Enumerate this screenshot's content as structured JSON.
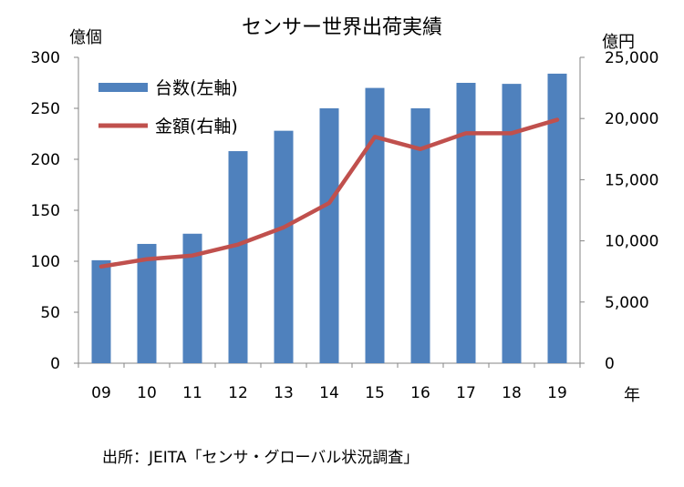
{
  "title": "センサー世界出荷実績",
  "left_axis_unit": "億個",
  "right_axis_unit": "億円",
  "x_axis_unit": "年",
  "source": "出所：JEITA「センサ・グローバル状況調査」",
  "colors": {
    "bar": "#4F81BD",
    "line": "#C0504D",
    "axis": "#868686"
  },
  "chart_data": {
    "type": "bar",
    "categories": [
      "09",
      "10",
      "11",
      "12",
      "13",
      "14",
      "15",
      "16",
      "17",
      "18",
      "19"
    ],
    "series": [
      {
        "name": "台数(左軸)",
        "type": "bar",
        "axis": "left",
        "values": [
          101,
          117,
          127,
          208,
          228,
          250,
          270,
          250,
          275,
          274,
          284
        ]
      },
      {
        "name": "金額(右軸)",
        "type": "line",
        "axis": "right",
        "values": [
          7900,
          8500,
          8800,
          9700,
          11100,
          13100,
          18500,
          17500,
          18800,
          18800,
          19900
        ]
      }
    ],
    "ylim_left": [
      0,
      300
    ],
    "yticks_left": [
      "0",
      "50",
      "100",
      "150",
      "200",
      "250",
      "300"
    ],
    "ylim_right": [
      0,
      25000
    ],
    "yticks_right": [
      "0",
      "5,000",
      "10,000",
      "15,000",
      "20,000",
      "25,000"
    ],
    "grid": false,
    "legend_position": "top-left"
  }
}
